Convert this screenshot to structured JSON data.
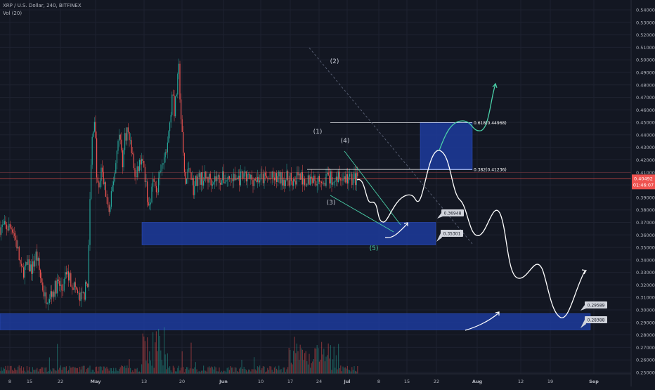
{
  "header": {
    "title": "XRP / U.S. Dollar, 240, BITFINEX",
    "volume": "Vol (20)"
  },
  "colors": {
    "background": "#131722",
    "grid": "#1e2230",
    "up": "#26a69a",
    "down": "#ef5350",
    "zone": "#1d3b9c",
    "price_line": "#ef5350",
    "projection": "#ffffff",
    "projection_up": "#4bd1a9",
    "trendline": "#5c6378"
  },
  "chart_data": {
    "type": "candlestick",
    "title": "XRP / U.S. Dollar, 240, BITFINEX",
    "indicator": "Vol (20)",
    "ylim": [
      0.245,
      0.545
    ],
    "y_ticks": [
      "0.54000",
      "0.53000",
      "0.52000",
      "0.51000",
      "0.50000",
      "0.49000",
      "0.48000",
      "0.47000",
      "0.46000",
      "0.45000",
      "0.44000",
      "0.43000",
      "0.42000",
      "0.41000",
      "0.40000",
      "0.39000",
      "0.38000",
      "0.37000",
      "0.36000",
      "0.35000",
      "0.34000",
      "0.33000",
      "0.32000",
      "0.31000",
      "0.30000",
      "0.29000",
      "0.28000",
      "0.27000",
      "0.26000",
      "0.25000"
    ],
    "x_ticks": [
      "8",
      "15",
      "22",
      "May",
      "13",
      "20",
      "Jun",
      "10",
      "17",
      "24",
      "Jul",
      "8",
      "15",
      "22",
      "Aug",
      "12",
      "19",
      "Sep"
    ],
    "current_price": {
      "value": "0.40492",
      "countdown": "01:46:07"
    },
    "price_path": [
      [
        "Apr 8",
        0.366
      ],
      [
        "Apr 10",
        0.352
      ],
      [
        "Apr 12",
        0.33
      ],
      [
        "Apr 15",
        0.335
      ],
      [
        "Apr 17",
        0.333
      ],
      [
        "Apr 19",
        0.345
      ],
      [
        "Apr 21",
        0.325
      ],
      [
        "Apr 23",
        0.31
      ],
      [
        "Apr 25",
        0.312
      ],
      [
        "Apr 27",
        0.315
      ],
      [
        "Apr 29",
        0.322
      ],
      [
        "May 1",
        0.315
      ],
      [
        "May 3",
        0.33
      ],
      [
        "May 5",
        0.323
      ],
      [
        "May 7",
        0.318
      ],
      [
        "May 9",
        0.308
      ],
      [
        "May 11",
        0.312
      ],
      [
        "May 13",
        0.325
      ],
      [
        "May 14",
        0.4
      ],
      [
        "May 15",
        0.442
      ],
      [
        "May 16",
        0.455
      ],
      [
        "May 17",
        0.405
      ],
      [
        "May 18",
        0.395
      ],
      [
        "May 19",
        0.412
      ],
      [
        "May 21",
        0.395
      ],
      [
        "May 22",
        0.385
      ],
      [
        "May 23",
        0.375
      ],
      [
        "May 24",
        0.395
      ],
      [
        "May 26",
        0.42
      ],
      [
        "May 27",
        0.443
      ],
      [
        "May 28",
        0.433
      ],
      [
        "May 29",
        0.418
      ],
      [
        "May 30",
        0.438
      ],
      [
        "May 31",
        0.444
      ],
      [
        "Jun 2",
        0.43
      ],
      [
        "Jun 4",
        0.403
      ],
      [
        "Jun 6",
        0.42
      ],
      [
        "Jun 8",
        0.41
      ],
      [
        "Jun 10",
        0.382
      ],
      [
        "Jun 12",
        0.402
      ],
      [
        "Jun 14",
        0.396
      ],
      [
        "Jun 16",
        0.412
      ],
      [
        "Jun 18",
        0.425
      ],
      [
        "Jun 20",
        0.45
      ],
      [
        "Jun 21",
        0.478
      ],
      [
        "Jun 22",
        0.458
      ],
      [
        "Jun 23",
        0.475
      ],
      [
        "Jun 24",
        0.492
      ],
      [
        "Jun 25",
        0.455
      ],
      [
        "Jun 26",
        0.425
      ],
      [
        "Jun 27",
        0.4
      ],
      [
        "Jun 28",
        0.407
      ],
      [
        "Jun 29",
        0.418
      ],
      [
        "Jun 30",
        0.404
      ],
      [
        "Jul 1",
        0.395
      ],
      [
        "Jul 2",
        0.405
      ]
    ],
    "volume_note": "relative volume bars (estimated)",
    "zones": [
      {
        "name": "support-upper",
        "from": 0.352,
        "to": 0.37
      },
      {
        "name": "support-lower",
        "from": 0.284,
        "to": 0.297
      },
      {
        "name": "fib-zone",
        "from": 0.412,
        "to": 0.45
      }
    ],
    "fibonacci": [
      {
        "label": "0.618(0.44968)",
        "value": 0.44968
      },
      {
        "label": "0.382(0.41236)",
        "value": 0.41236
      }
    ],
    "horizontal_lines": [
      0.40492,
      0.41
    ],
    "price_labels": [
      {
        "label": "0.36948",
        "value": 0.36948
      },
      {
        "label": "0.35301",
        "value": 0.35301
      },
      {
        "label": "0.29589",
        "value": 0.29589
      },
      {
        "label": "0.28388",
        "value": 0.28388
      }
    ],
    "wave_labels": [
      {
        "label": "(1)",
        "value": 0.445
      },
      {
        "label": "(2)",
        "value": 0.498
      },
      {
        "label": "(3)",
        "value": 0.386
      },
      {
        "label": "(4)",
        "value": 0.43
      },
      {
        "label": "(5)",
        "value": 0.349
      }
    ]
  }
}
